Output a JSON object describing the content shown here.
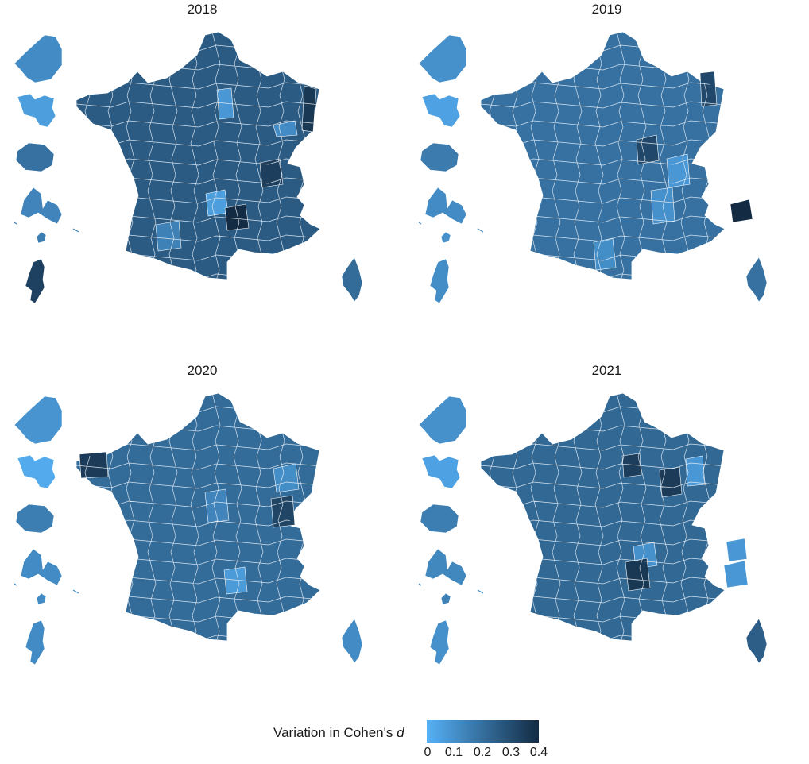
{
  "colors": {
    "low": "#56b1f7",
    "high": "#132b43",
    "border": "#ffffff"
  },
  "panels": [
    {
      "year": "2018",
      "mainland": 0.27,
      "overseas": [
        0.12,
        0.06,
        0.2,
        0.14,
        0.16,
        0.35
      ],
      "corsica": 0.22,
      "highlights": [
        {
          "poly": [
            [
              273,
              113
            ],
            [
              291,
              111
            ],
            [
              294,
              148
            ],
            [
              276,
              150
            ]
          ],
          "value": 0.08
        },
        {
          "poly": [
            [
              344,
              158
            ],
            [
              371,
              152
            ],
            [
              374,
              170
            ],
            [
              348,
              172
            ]
          ],
          "value": 0.12
        },
        {
          "poly": [
            [
              383,
              108
            ],
            [
              398,
              112
            ],
            [
              394,
              166
            ],
            [
              380,
              164
            ]
          ],
          "value": 0.38
        },
        {
          "poly": [
            [
              327,
              205
            ],
            [
              352,
              200
            ],
            [
              356,
              232
            ],
            [
              330,
              236
            ]
          ],
          "value": 0.36
        },
        {
          "poly": [
            [
              259,
              244
            ],
            [
              283,
              239
            ],
            [
              287,
              268
            ],
            [
              262,
              272
            ]
          ],
          "value": 0.06
        },
        {
          "poly": [
            [
              283,
              262
            ],
            [
              309,
              257
            ],
            [
              313,
              287
            ],
            [
              286,
              290
            ]
          ],
          "value": 0.42
        },
        {
          "poly": [
            [
              196,
              283
            ],
            [
              225,
              278
            ],
            [
              228,
              312
            ],
            [
              199,
              316
            ]
          ],
          "value": 0.15
        }
      ]
    },
    {
      "year": "2019",
      "mainland": 0.2,
      "overseas": [
        0.1,
        0.05,
        0.17,
        0.12,
        0.1,
        0.11
      ],
      "corsica": 0.2,
      "highlights": [
        {
          "poly": [
            [
              292,
              176
            ],
            [
              317,
              170
            ],
            [
              320,
              202
            ],
            [
              294,
              207
            ]
          ],
          "value": 0.33
        },
        {
          "poly": [
            [
              330,
              200
            ],
            [
              356,
              194
            ],
            [
              359,
              232
            ],
            [
              333,
              236
            ]
          ],
          "value": 0.08
        },
        {
          "poly": [
            [
              310,
              240
            ],
            [
              337,
              236
            ],
            [
              340,
              278
            ],
            [
              313,
              282
            ]
          ],
          "value": 0.1
        },
        {
          "poly": [
            [
              372,
              92
            ],
            [
              390,
              90
            ],
            [
              393,
              132
            ],
            [
              374,
              134
            ]
          ],
          "value": 0.33
        },
        {
          "poly": [
            [
              410,
              257
            ],
            [
              434,
              251
            ],
            [
              438,
              276
            ],
            [
              413,
              280
            ]
          ],
          "value": 0.42
        },
        {
          "poly": [
            [
              238,
              305
            ],
            [
              262,
              300
            ],
            [
              266,
              337
            ],
            [
              241,
              340
            ]
          ],
          "value": 0.11
        }
      ]
    },
    {
      "year": "2020",
      "mainland": 0.22,
      "overseas": [
        0.09,
        0.02,
        0.16,
        0.12,
        0.12,
        0.12
      ],
      "corsica": 0.12,
      "highlights": [
        {
          "poly": [
            [
              100,
              572
            ],
            [
              134,
              569
            ],
            [
              136,
              600
            ],
            [
              102,
              602
            ]
          ],
          "value": 0.37
        },
        {
          "poly": [
            [
              344,
              590
            ],
            [
              372,
              584
            ],
            [
              376,
              616
            ],
            [
              348,
              620
            ]
          ],
          "value": 0.11
        },
        {
          "poly": [
            [
              341,
              628
            ],
            [
              368,
              624
            ],
            [
              371,
              661
            ],
            [
              344,
              664
            ]
          ],
          "value": 0.34
        },
        {
          "poly": [
            [
              282,
              718
            ],
            [
              308,
              714
            ],
            [
              311,
              745
            ],
            [
              285,
              748
            ]
          ],
          "value": 0.07
        },
        {
          "poly": [
            [
              258,
              620
            ],
            [
              284,
              616
            ],
            [
              288,
              655
            ],
            [
              262,
              658
            ]
          ],
          "value": 0.14
        }
      ]
    },
    {
      "year": "2021",
      "mainland": 0.23,
      "overseas": [
        0.1,
        0.05,
        0.16,
        0.13,
        0.15,
        0.1
      ],
      "corsica": 0.26,
      "highlights": [
        {
          "poly": [
            [
              354,
              578
            ],
            [
              375,
              574
            ],
            [
              378,
              610
            ],
            [
              356,
              612
            ]
          ],
          "value": 0.08
        },
        {
          "poly": [
            [
              321,
              592
            ],
            [
              346,
              588
            ],
            [
              349,
              622
            ],
            [
              324,
              626
            ]
          ],
          "value": 0.37
        },
        {
          "poly": [
            [
              274,
              574
            ],
            [
              296,
              571
            ],
            [
              298,
              598
            ],
            [
              276,
              601
            ]
          ],
          "value": 0.36
        },
        {
          "poly": [
            [
              288,
              688
            ],
            [
              314,
              683
            ],
            [
              318,
              712
            ],
            [
              291,
              716
            ]
          ],
          "value": 0.1
        },
        {
          "poly": [
            [
              278,
              708
            ],
            [
              305,
              703
            ],
            [
              309,
              740
            ],
            [
              282,
              744
            ]
          ],
          "value": 0.38
        },
        {
          "poly": [
            [
              402,
              712
            ],
            [
              428,
              706
            ],
            [
              432,
              736
            ],
            [
              406,
              740
            ]
          ],
          "value": 0.08
        },
        {
          "poly": [
            [
              405,
              682
            ],
            [
              428,
              678
            ],
            [
              431,
              704
            ],
            [
              408,
              707
            ]
          ],
          "value": 0.08
        }
      ]
    }
  ],
  "legend": {
    "title": "Variation in Cohen's",
    "title_italic": "d",
    "ticks": [
      "0",
      "0.1",
      "0.2",
      "0.3",
      "0.4"
    ],
    "tick_values": [
      0,
      0.1,
      0.2,
      0.3,
      0.4
    ],
    "range": [
      0,
      0.42
    ]
  }
}
